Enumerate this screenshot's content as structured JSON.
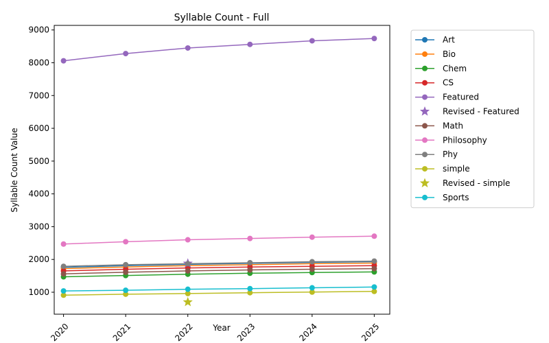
{
  "chart_data": {
    "type": "line",
    "title": "Syllable Count - Full",
    "xlabel": "Year",
    "ylabel": "Syllable Count Value",
    "x": [
      2020,
      2021,
      2022,
      2023,
      2024,
      2025
    ],
    "xlim": [
      2019.85,
      2025.25
    ],
    "ylim": [
      330,
      9140
    ],
    "yticks": [
      1000,
      2000,
      3000,
      4000,
      5000,
      6000,
      7000,
      8000,
      9000
    ],
    "legend_position": "outside-right",
    "grid": false,
    "series": [
      {
        "name": "Art",
        "color": "#1f77b4",
        "marker": "circle",
        "values": [
          1760,
          1810,
          1850,
          1880,
          1910,
          1930
        ]
      },
      {
        "name": "Bio",
        "color": "#ff7f0e",
        "marker": "circle",
        "values": [
          1720,
          1770,
          1810,
          1840,
          1870,
          1890
        ]
      },
      {
        "name": "Chem",
        "color": "#2ca02c",
        "marker": "circle",
        "values": [
          1470,
          1510,
          1550,
          1580,
          1600,
          1620
        ]
      },
      {
        "name": "CS",
        "color": "#d62728",
        "marker": "circle",
        "values": [
          1650,
          1700,
          1740,
          1770,
          1790,
          1810
        ]
      },
      {
        "name": "Featured",
        "color": "#9467bd",
        "marker": "circle",
        "values": [
          8060,
          8280,
          8450,
          8560,
          8670,
          8740
        ]
      },
      {
        "name": "Revised - Featured",
        "color": "#9467bd",
        "marker": "star",
        "points": [
          {
            "x": 2022,
            "y": 1880
          }
        ]
      },
      {
        "name": "Math",
        "color": "#8c564b",
        "marker": "circle",
        "values": [
          1560,
          1610,
          1650,
          1680,
          1700,
          1720
        ]
      },
      {
        "name": "Philosophy",
        "color": "#e377c2",
        "marker": "circle",
        "values": [
          2470,
          2540,
          2600,
          2640,
          2680,
          2710
        ]
      },
      {
        "name": "Phy",
        "color": "#7f7f7f",
        "marker": "circle",
        "values": [
          1790,
          1840,
          1870,
          1900,
          1930,
          1950
        ]
      },
      {
        "name": "simple",
        "color": "#bcbd22",
        "marker": "circle",
        "values": [
          910,
          940,
          960,
          985,
          1005,
          1025
        ]
      },
      {
        "name": "Revised - simple",
        "color": "#bcbd22",
        "marker": "star",
        "points": [
          {
            "x": 2022,
            "y": 700
          }
        ]
      },
      {
        "name": "Sports",
        "color": "#17becf",
        "marker": "circle",
        "values": [
          1040,
          1060,
          1090,
          1110,
          1135,
          1160
        ]
      }
    ]
  }
}
